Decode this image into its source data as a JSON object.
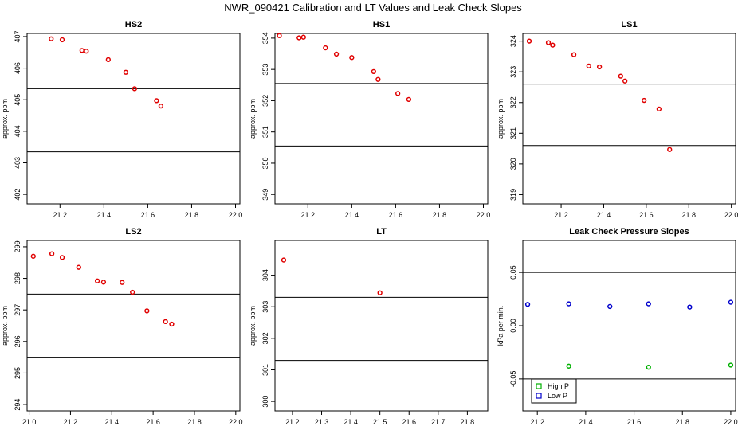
{
  "figure": {
    "title": "NWR_090421  Calibration and LT Values and Leak Check Slopes"
  },
  "chart_data": [
    {
      "type": "scatter",
      "title": "HS2",
      "ylabel": "approx. ppm",
      "xlim": [
        21.05,
        22.02
      ],
      "ylim": [
        401.7,
        407.1
      ],
      "xticks": [
        "21.2",
        "21.4",
        "21.6",
        "21.8",
        "22.0"
      ],
      "xtick_values": [
        21.2,
        21.4,
        21.6,
        21.8,
        22.0
      ],
      "yticks": [
        "402",
        "403",
        "404",
        "405",
        "406",
        "407"
      ],
      "ytick_values": [
        402,
        403,
        404,
        405,
        406,
        407
      ],
      "hlines": [
        405.35,
        403.35
      ],
      "series": [
        {
          "color": "#e00000",
          "x": [
            21.16,
            21.21,
            21.3,
            21.32,
            21.42,
            21.5,
            21.54,
            21.64,
            21.66
          ],
          "y": [
            406.93,
            406.9,
            406.56,
            406.54,
            406.27,
            405.87,
            405.35,
            404.97,
            404.8
          ]
        }
      ]
    },
    {
      "type": "scatter",
      "title": "HS1",
      "ylabel": "approx. ppm",
      "xlim": [
        21.05,
        22.02
      ],
      "ylim": [
        348.7,
        354.15
      ],
      "xticks": [
        "21.2",
        "21.4",
        "21.6",
        "21.8",
        "22.0"
      ],
      "xtick_values": [
        21.2,
        21.4,
        21.6,
        21.8,
        22.0
      ],
      "yticks": [
        "349",
        "350",
        "351",
        "352",
        "353",
        "354"
      ],
      "ytick_values": [
        349,
        350,
        351,
        352,
        353,
        354
      ],
      "hlines": [
        352.55,
        350.55
      ],
      "series": [
        {
          "color": "#e00000",
          "x": [
            21.07,
            21.16,
            21.18,
            21.28,
            21.33,
            21.4,
            21.5,
            21.52,
            21.61,
            21.66
          ],
          "y": [
            354.08,
            354.01,
            354.03,
            353.69,
            353.49,
            353.38,
            352.93,
            352.68,
            352.23,
            352.04
          ]
        }
      ]
    },
    {
      "type": "scatter",
      "title": "LS1",
      "ylabel": "approx. ppm",
      "xlim": [
        21.02,
        22.02
      ],
      "ylim": [
        318.7,
        324.25
      ],
      "xticks": [
        "21.2",
        "21.4",
        "21.6",
        "21.8",
        "22.0"
      ],
      "xtick_values": [
        21.2,
        21.4,
        21.6,
        21.8,
        22.0
      ],
      "yticks": [
        "319",
        "320",
        "321",
        "322",
        "323",
        "324"
      ],
      "ytick_values": [
        319,
        320,
        321,
        322,
        323,
        324
      ],
      "hlines": [
        322.6,
        320.6
      ],
      "series": [
        {
          "color": "#e00000",
          "x": [
            21.05,
            21.14,
            21.16,
            21.26,
            21.33,
            21.38,
            21.48,
            21.5,
            21.59,
            21.66,
            21.71
          ],
          "y": [
            324.0,
            323.95,
            323.87,
            323.56,
            323.19,
            323.16,
            322.86,
            322.7,
            322.07,
            321.79,
            320.47
          ]
        }
      ]
    },
    {
      "type": "scatter",
      "title": "LS2",
      "ylabel": "approx. ppm",
      "xlim": [
        20.99,
        22.02
      ],
      "ylim": [
        293.8,
        299.2
      ],
      "xticks": [
        "21.0",
        "21.2",
        "21.4",
        "21.6",
        "21.8",
        "22.0"
      ],
      "xtick_values": [
        21.0,
        21.2,
        21.4,
        21.6,
        21.8,
        22.0
      ],
      "yticks": [
        "294",
        "295",
        "296",
        "297",
        "298",
        "299"
      ],
      "ytick_values": [
        294,
        295,
        296,
        297,
        298,
        299
      ],
      "hlines": [
        297.5,
        295.5
      ],
      "series": [
        {
          "color": "#e00000",
          "x": [
            21.02,
            21.11,
            21.16,
            21.24,
            21.33,
            21.36,
            21.45,
            21.5,
            21.57,
            21.66,
            21.69
          ],
          "y": [
            298.7,
            298.78,
            298.66,
            298.35,
            297.92,
            297.88,
            297.87,
            297.56,
            296.97,
            296.63,
            296.55
          ]
        }
      ]
    },
    {
      "type": "scatter",
      "title": "LT",
      "ylabel": "approx. ppm",
      "xlim": [
        21.14,
        21.87
      ],
      "ylim": [
        299.7,
        305.1
      ],
      "xticks": [
        "21.2",
        "21.3",
        "21.4",
        "21.5",
        "21.6",
        "21.7",
        "21.8"
      ],
      "xtick_values": [
        21.2,
        21.3,
        21.4,
        21.5,
        21.6,
        21.7,
        21.8
      ],
      "yticks": [
        "300",
        "301",
        "302",
        "303",
        "304"
      ],
      "ytick_values": [
        300,
        301,
        302,
        303,
        304
      ],
      "hlines": [
        303.3,
        301.3
      ],
      "series": [
        {
          "color": "#e00000",
          "x": [
            21.17,
            21.5
          ],
          "y": [
            304.48,
            303.44
          ]
        }
      ]
    },
    {
      "type": "scatter",
      "title": "Leak Check Pressure Slopes",
      "ylabel": "kPa per min.",
      "xlim": [
        21.14,
        22.02
      ],
      "ylim": [
        -0.08,
        0.08
      ],
      "xticks": [
        "21.2",
        "21.4",
        "21.6",
        "21.8",
        "22.0"
      ],
      "xtick_values": [
        21.2,
        21.4,
        21.6,
        21.8,
        22.0
      ],
      "yticks": [
        "-0.05",
        "0.00",
        "0.05"
      ],
      "ytick_values": [
        -0.05,
        0.0,
        0.05
      ],
      "hlines": [
        0.05,
        -0.05
      ],
      "legend_position": "bottom-left",
      "series": [
        {
          "name": "High P",
          "color": "#00b000",
          "x": [
            21.33,
            21.66,
            22.0
          ],
          "y": [
            -0.038,
            -0.039,
            -0.037
          ]
        },
        {
          "name": "Low P",
          "color": "#0000cc",
          "x": [
            21.16,
            21.33,
            21.5,
            21.66,
            21.83,
            22.0
          ],
          "y": [
            0.02,
            0.0205,
            0.018,
            0.0205,
            0.0175,
            0.022
          ]
        }
      ]
    }
  ]
}
